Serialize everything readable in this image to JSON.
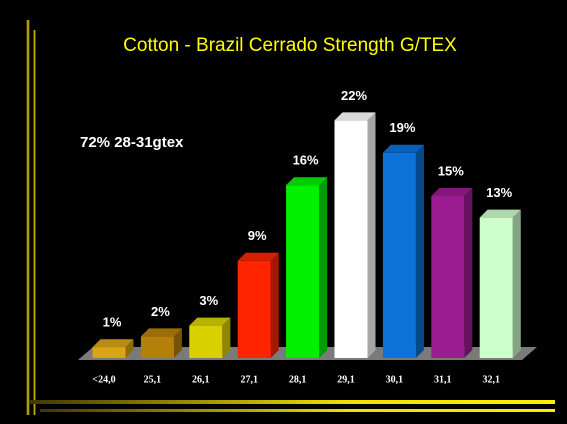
{
  "chart_data": {
    "type": "bar",
    "title": "Cotton - Brazil Cerrado Strength G/TEX",
    "annotation": "72% 28-31gtex",
    "categories": [
      "<24,0",
      "25,1",
      "26,1",
      "27,1",
      "28,1",
      "29,1",
      "30,1",
      "31,1",
      "32,1"
    ],
    "values": [
      1,
      2,
      3,
      9,
      16,
      22,
      19,
      15,
      13
    ],
    "value_labels": [
      "1%",
      "2%",
      "3%",
      "9%",
      "16%",
      "22%",
      "19%",
      "15%",
      "13%"
    ],
    "colors": [
      "#d9a514",
      "#b5800a",
      "#d8d000",
      "#ff2400",
      "#00f000",
      "#ffffff",
      "#0a72d8",
      "#9a1c90",
      "#ccffcc"
    ]
  }
}
